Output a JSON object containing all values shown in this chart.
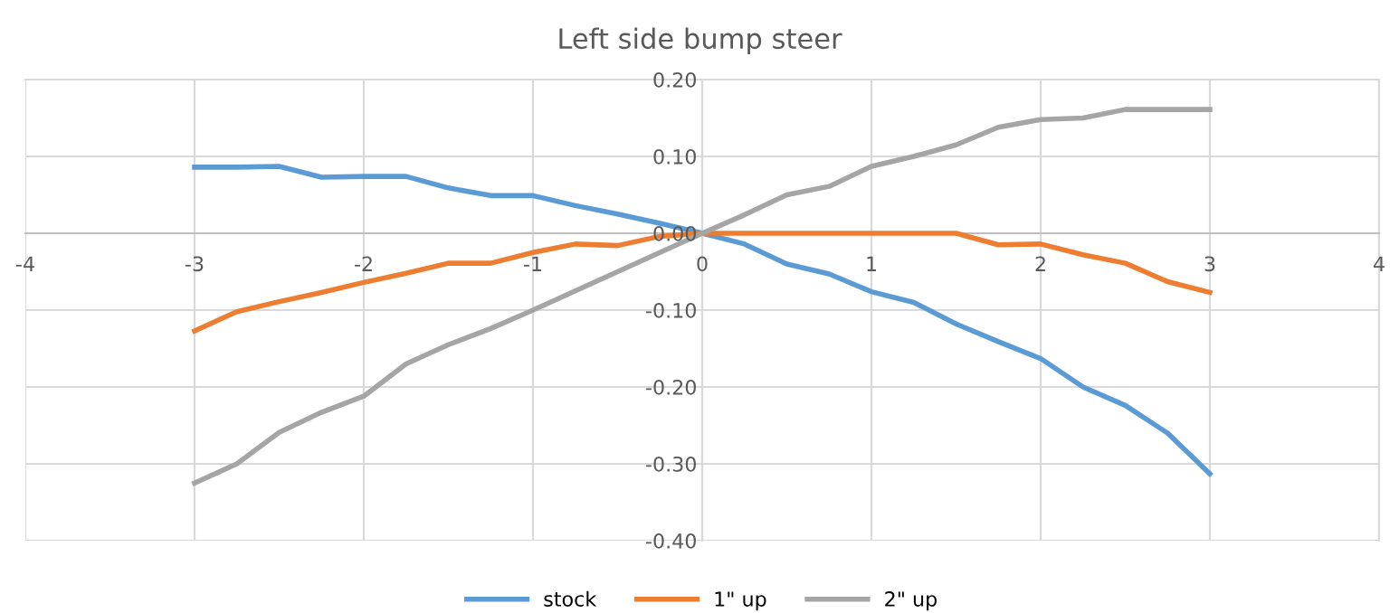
{
  "chart_data": {
    "type": "line",
    "title": "Left side bump steer",
    "x": [
      -3,
      -2.75,
      -2.5,
      -2.25,
      -2,
      -1.75,
      -1.5,
      -1.25,
      -1,
      -0.75,
      -0.5,
      -0.25,
      0,
      0.25,
      0.5,
      0.75,
      1,
      1.25,
      1.5,
      1.75,
      2,
      2.25,
      2.5,
      2.75,
      3
    ],
    "series": [
      {
        "name": "stock",
        "color": "#5b9bd5",
        "values": [
          0.086,
          0.086,
          0.087,
          0.073,
          0.074,
          0.074,
          0.059,
          0.049,
          0.049,
          0.036,
          0.025,
          0.013,
          0,
          -0.014,
          -0.04,
          -0.053,
          -0.076,
          -0.09,
          -0.118,
          -0.141,
          -0.163,
          -0.2,
          -0.224,
          -0.26,
          -0.313
        ]
      },
      {
        "name": "1\" up",
        "color": "#ed7d31",
        "values": [
          -0.127,
          -0.102,
          -0.089,
          -0.077,
          -0.064,
          -0.052,
          -0.039,
          -0.039,
          -0.025,
          -0.014,
          -0.016,
          -0.004,
          0,
          0,
          0,
          0,
          0,
          0,
          0,
          -0.015,
          -0.014,
          -0.028,
          -0.039,
          -0.063,
          -0.077
        ]
      },
      {
        "name": "2\" up",
        "color": "#a5a5a5",
        "values": [
          -0.325,
          -0.3,
          -0.259,
          -0.233,
          -0.212,
          -0.17,
          -0.145,
          -0.124,
          -0.1,
          -0.075,
          -0.05,
          -0.025,
          0,
          0.024,
          0.05,
          0.061,
          0.087,
          0.1,
          0.115,
          0.138,
          0.148,
          0.15,
          0.161,
          0.161,
          0.161
        ]
      }
    ],
    "xlim": [
      -4,
      4
    ],
    "xticks": [
      -4,
      -3,
      -2,
      -1,
      0,
      1,
      2,
      3,
      4
    ],
    "ylim": [
      -0.4,
      0.2
    ],
    "yticks": [
      {
        "value": -0.4,
        "label": "-0.40"
      },
      {
        "value": -0.3,
        "label": "-0.30"
      },
      {
        "value": -0.2,
        "label": "-0.20"
      },
      {
        "value": -0.1,
        "label": "-0.10"
      },
      {
        "value": 0,
        "label": "0.00"
      },
      {
        "value": 0.1,
        "label": "0.10"
      },
      {
        "value": 0.2,
        "label": "0.20"
      }
    ],
    "grid": true,
    "legend": "bottom",
    "marker": "none",
    "line_style": "solid"
  }
}
